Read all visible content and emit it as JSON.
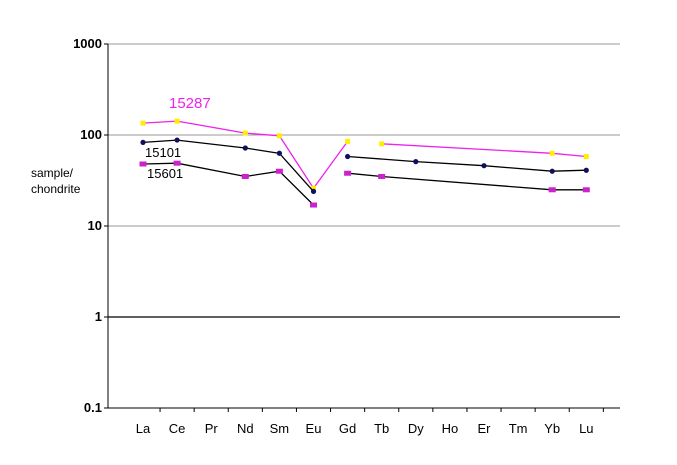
{
  "chart_data": {
    "type": "line",
    "title": "",
    "xlabel": "",
    "ylabel": "sample/\nchondrite",
    "ylabel_lines": [
      "sample/",
      "chondrite"
    ],
    "yscale": "log",
    "ylim": [
      0.1,
      1000
    ],
    "yticks": [
      "1000",
      "100",
      "10",
      "1",
      "0.1"
    ],
    "categories": [
      "La",
      "Ce",
      "Pr",
      "Nd",
      "Sm",
      "Eu",
      "Gd",
      "Tb",
      "Dy",
      "Ho",
      "Er",
      "Tm",
      "Yb",
      "Lu"
    ],
    "grid": true,
    "series": [
      {
        "name": "15287",
        "color": "#ee22ee",
        "marker_color": "#ffee00",
        "points": [
          {
            "x": "La",
            "y": 135
          },
          {
            "x": "Ce",
            "y": 142
          },
          {
            "x": "Nd",
            "y": 105
          },
          {
            "x": "Sm",
            "y": 98
          },
          {
            "x": "Eu",
            "y": 26
          },
          {
            "x": "Gd",
            "y": 85
          },
          {
            "x": "Tb",
            "y": 80
          },
          {
            "x": "Yb",
            "y": 63
          },
          {
            "x": "Lu",
            "y": 58
          }
        ]
      },
      {
        "name": "15101",
        "color": "#000000",
        "marker_color": "#10105a",
        "points": [
          {
            "x": "La",
            "y": 83
          },
          {
            "x": "Ce",
            "y": 88
          },
          {
            "x": "Nd",
            "y": 72
          },
          {
            "x": "Sm",
            "y": 63
          },
          {
            "x": "Eu",
            "y": 24
          },
          {
            "x": "Gd",
            "y": 58
          },
          {
            "x": "Dy",
            "y": 51
          },
          {
            "x": "Er",
            "y": 46
          },
          {
            "x": "Yb",
            "y": 40
          },
          {
            "x": "Lu",
            "y": 41
          }
        ]
      },
      {
        "name": "15601",
        "color": "#000000",
        "marker_color": "#cc22cc",
        "points": [
          {
            "x": "La",
            "y": 48
          },
          {
            "x": "Ce",
            "y": 49
          },
          {
            "x": "Nd",
            "y": 35
          },
          {
            "x": "Sm",
            "y": 40
          },
          {
            "x": "Eu",
            "y": 17
          },
          {
            "x": "Gd",
            "y": 38
          },
          {
            "x": "Tb",
            "y": 35
          },
          {
            "x": "Yb",
            "y": 25
          },
          {
            "x": "Lu",
            "y": 25
          }
        ]
      }
    ]
  }
}
